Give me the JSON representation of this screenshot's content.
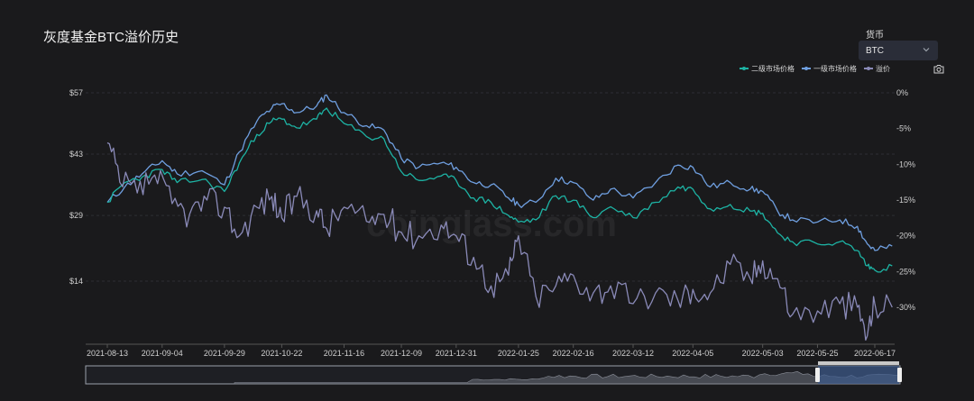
{
  "title": "灰度基金BTC溢价历史",
  "currency": {
    "label": "货币",
    "selected": "BTC"
  },
  "watermark": "coinglass.com",
  "colors": {
    "secondary": "#1db3a4",
    "primary": "#6f9fe0",
    "premium": "#8a8ab8",
    "grid": "#2e2f33",
    "navigator_fill": "#3c5a8c"
  },
  "icons": {
    "dropdown": "chevron-down-icon",
    "download": "camera-icon"
  },
  "chart_data": {
    "type": "line",
    "title": "灰度基金BTC溢价历史",
    "legend_position": "top-right",
    "x_ticks": [
      "2021-08-13",
      "2021-09-04",
      "2021-09-29",
      "2021-10-22",
      "2021-11-16",
      "2021-12-09",
      "2021-12-31",
      "2022-01-25",
      "2022-02-16",
      "2022-03-12",
      "2022-04-05",
      "2022-05-03",
      "2022-05-25",
      "2022-06-17"
    ],
    "y_left": {
      "ticks": [
        "$57",
        "$43",
        "$29",
        "$14"
      ],
      "values": [
        57,
        43,
        29,
        14
      ],
      "range": [
        0,
        57
      ]
    },
    "y_right": {
      "ticks": [
        "0%",
        "-5%",
        "-10%",
        "-15%",
        "-20%",
        "-25%",
        "-30%"
      ],
      "values": [
        0,
        -5,
        -10,
        -15,
        -20,
        -25,
        -30
      ],
      "range": [
        -35,
        0
      ]
    },
    "grid": true,
    "series": [
      {
        "name": "二级市场价格",
        "axis": "left",
        "color": "#1db3a4",
        "points": [
          [
            "2021-08-13",
            32
          ],
          [
            "2021-08-20",
            36.5
          ],
          [
            "2021-08-27",
            37.8
          ],
          [
            "2021-09-04",
            39.5
          ],
          [
            "2021-09-10",
            36.5
          ],
          [
            "2021-09-20",
            37.2
          ],
          [
            "2021-09-29",
            34.5
          ],
          [
            "2021-10-05",
            41
          ],
          [
            "2021-10-12",
            47.5
          ],
          [
            "2021-10-18",
            50.5
          ],
          [
            "2021-10-22",
            51
          ],
          [
            "2021-10-28",
            49
          ],
          [
            "2021-11-05",
            51
          ],
          [
            "2021-11-09",
            53.5
          ],
          [
            "2021-11-16",
            50
          ],
          [
            "2021-11-25",
            47
          ],
          [
            "2021-12-02",
            46.5
          ],
          [
            "2021-12-09",
            39
          ],
          [
            "2021-12-16",
            37
          ],
          [
            "2021-12-25",
            38
          ],
          [
            "2021-12-31",
            37
          ],
          [
            "2022-01-07",
            33
          ],
          [
            "2022-01-14",
            32
          ],
          [
            "2022-01-21",
            29
          ],
          [
            "2022-01-25",
            27.5
          ],
          [
            "2022-02-01",
            28
          ],
          [
            "2022-02-09",
            33.5
          ],
          [
            "2022-02-16",
            32.5
          ],
          [
            "2022-02-24",
            28.5
          ],
          [
            "2022-03-03",
            31
          ],
          [
            "2022-03-12",
            28.5
          ],
          [
            "2022-03-21",
            32
          ],
          [
            "2022-03-30",
            35.5
          ],
          [
            "2022-04-05",
            35
          ],
          [
            "2022-04-12",
            30.5
          ],
          [
            "2022-04-20",
            31.5
          ],
          [
            "2022-04-28",
            30
          ],
          [
            "2022-05-03",
            29.5
          ],
          [
            "2022-05-09",
            25
          ],
          [
            "2022-05-15",
            23
          ],
          [
            "2022-05-25",
            22.5
          ],
          [
            "2022-06-03",
            23
          ],
          [
            "2022-06-10",
            21
          ],
          [
            "2022-06-14",
            17.5
          ],
          [
            "2022-06-17",
            16.5
          ],
          [
            "2022-06-24",
            17.5
          ]
        ]
      },
      {
        "name": "一级市场价格",
        "axis": "left",
        "color": "#6f9fe0",
        "points": [
          [
            "2021-08-13",
            32
          ],
          [
            "2021-08-20",
            35.5
          ],
          [
            "2021-08-27",
            38.5
          ],
          [
            "2021-09-04",
            41.5
          ],
          [
            "2021-09-10",
            38.5
          ],
          [
            "2021-09-20",
            39.2
          ],
          [
            "2021-09-29",
            36
          ],
          [
            "2021-10-05",
            43.5
          ],
          [
            "2021-10-12",
            50.5
          ],
          [
            "2021-10-18",
            53.5
          ],
          [
            "2021-10-22",
            54.5
          ],
          [
            "2021-10-28",
            52.5
          ],
          [
            "2021-11-05",
            54
          ],
          [
            "2021-11-09",
            56.5
          ],
          [
            "2021-11-16",
            52.5
          ],
          [
            "2021-11-25",
            49.5
          ],
          [
            "2021-12-02",
            48.5
          ],
          [
            "2021-12-09",
            42
          ],
          [
            "2021-12-16",
            40
          ],
          [
            "2021-12-25",
            41
          ],
          [
            "2021-12-31",
            40
          ],
          [
            "2022-01-07",
            36.5
          ],
          [
            "2022-01-14",
            36
          ],
          [
            "2022-01-21",
            33
          ],
          [
            "2022-01-25",
            31.5
          ],
          [
            "2022-02-01",
            32
          ],
          [
            "2022-02-09",
            37.5
          ],
          [
            "2022-02-16",
            36.5
          ],
          [
            "2022-02-24",
            32.5
          ],
          [
            "2022-03-03",
            35
          ],
          [
            "2022-03-12",
            33
          ],
          [
            "2022-03-21",
            36.5
          ],
          [
            "2022-03-30",
            40.5
          ],
          [
            "2022-04-05",
            40
          ],
          [
            "2022-04-12",
            35.5
          ],
          [
            "2022-04-20",
            36.5
          ],
          [
            "2022-04-28",
            35
          ],
          [
            "2022-05-03",
            34.5
          ],
          [
            "2022-05-09",
            30
          ],
          [
            "2022-05-15",
            28
          ],
          [
            "2022-05-25",
            27.5
          ],
          [
            "2022-06-03",
            28
          ],
          [
            "2022-06-10",
            26.5
          ],
          [
            "2022-06-14",
            22.5
          ],
          [
            "2022-06-17",
            21
          ],
          [
            "2022-06-24",
            22
          ]
        ]
      },
      {
        "name": "溢价",
        "axis": "right",
        "color": "#8a8ab8",
        "points": [
          [
            "2021-08-13",
            -7
          ],
          [
            "2021-08-18",
            -12.5
          ],
          [
            "2021-08-25",
            -14
          ],
          [
            "2021-09-01",
            -11.5
          ],
          [
            "2021-09-08",
            -15.5
          ],
          [
            "2021-09-15",
            -17
          ],
          [
            "2021-09-22",
            -15
          ],
          [
            "2021-09-29",
            -16
          ],
          [
            "2021-10-05",
            -20
          ],
          [
            "2021-10-12",
            -16
          ],
          [
            "2021-10-18",
            -14.5
          ],
          [
            "2021-10-22",
            -17.5
          ],
          [
            "2021-10-28",
            -14.5
          ],
          [
            "2021-11-05",
            -16.5
          ],
          [
            "2021-11-09",
            -19
          ],
          [
            "2021-11-16",
            -16
          ],
          [
            "2021-11-25",
            -18
          ],
          [
            "2021-12-02",
            -17
          ],
          [
            "2021-12-09",
            -19.5
          ],
          [
            "2021-12-16",
            -20
          ],
          [
            "2021-12-25",
            -18.5
          ],
          [
            "2021-12-31",
            -20
          ],
          [
            "2022-01-07",
            -23
          ],
          [
            "2022-01-14",
            -27
          ],
          [
            "2022-01-21",
            -25.5
          ],
          [
            "2022-01-25",
            -20
          ],
          [
            "2022-02-01",
            -28.5
          ],
          [
            "2022-02-09",
            -27
          ],
          [
            "2022-02-16",
            -25.5
          ],
          [
            "2022-02-24",
            -28
          ],
          [
            "2022-03-03",
            -27
          ],
          [
            "2022-03-12",
            -29.5
          ],
          [
            "2022-03-21",
            -28
          ],
          [
            "2022-03-30",
            -29
          ],
          [
            "2022-04-05",
            -27.5
          ],
          [
            "2022-04-12",
            -28
          ],
          [
            "2022-04-20",
            -24
          ],
          [
            "2022-04-28",
            -26
          ],
          [
            "2022-05-03",
            -23.5
          ],
          [
            "2022-05-09",
            -26
          ],
          [
            "2022-05-15",
            -31
          ],
          [
            "2022-05-25",
            -30.5
          ],
          [
            "2022-06-03",
            -29.5
          ],
          [
            "2022-06-10",
            -30
          ],
          [
            "2022-06-14",
            -34
          ],
          [
            "2022-06-17",
            -29.5
          ],
          [
            "2022-06-24",
            -30
          ]
        ]
      }
    ],
    "navigator": {
      "selected_range": [
        "2021-08-13",
        "2022-06-24"
      ]
    }
  }
}
